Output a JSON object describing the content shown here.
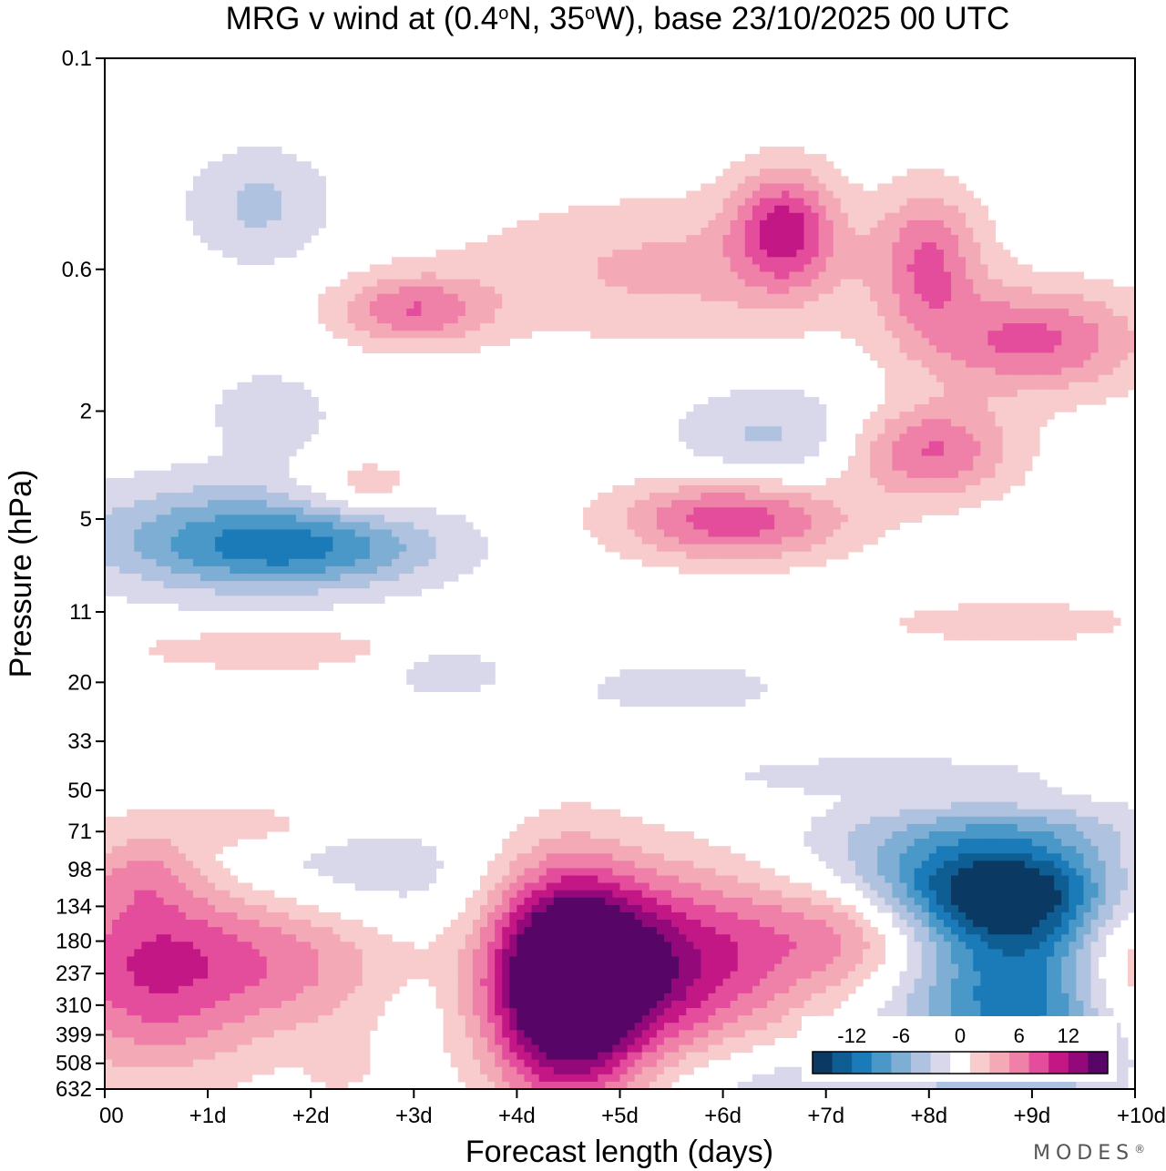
{
  "chart_data": {
    "type": "heatmap",
    "title_parts": {
      "pre": "MRG v wind at (0.4",
      "deg1": "o",
      "mid": "N, 35",
      "deg2": "o",
      "post": "W),  base 23/10/2025  00 UTC"
    },
    "xlabel": "Forecast length (days)",
    "ylabel": "Pressure (hPa)",
    "x_ticks": [
      "00",
      "+1d",
      "+2d",
      "+3d",
      "+4d",
      "+5d",
      "+6d",
      "+7d",
      "+8d",
      "+9d",
      "+10d"
    ],
    "x_range_days": [
      0,
      10
    ],
    "y_ticks": [
      "0.1",
      "0.6",
      "2",
      "5",
      "11",
      "20",
      "33",
      "50",
      "71",
      "98",
      "134",
      "180",
      "237",
      "310",
      "399",
      "508",
      "632"
    ],
    "y_range_hpa": [
      0.1,
      632
    ],
    "legend": {
      "labels": [
        "-12",
        "-6",
        "0",
        "6",
        "12"
      ],
      "colors": [
        "#0a3a63",
        "#0e5e94",
        "#1b7bb8",
        "#4a98c8",
        "#7eaed4",
        "#afc2df",
        "#d8d8ea",
        "#ffffff",
        "#f8cccc",
        "#f3aab6",
        "#ef80a8",
        "#e44d9c",
        "#c21785",
        "#93097a",
        "#570566"
      ]
    },
    "blobs": [
      {
        "x": 4.45,
        "p": 237,
        "v": 14,
        "rx": 0.75,
        "rl": 0.9
      },
      {
        "x": 5.3,
        "p": 230,
        "v": 9,
        "rx": 1.1,
        "rl": 0.75
      },
      {
        "x": 4.5,
        "p": 330,
        "v": 6,
        "rx": 0.7,
        "rl": 1.0
      },
      {
        "x": 0.4,
        "p": 220,
        "v": 9,
        "rx": 1.0,
        "rl": 0.9
      },
      {
        "x": 1.8,
        "p": 200,
        "v": 6,
        "rx": 1.1,
        "rl": 0.7
      },
      {
        "x": 7.3,
        "p": 160,
        "v": 6,
        "rx": 0.9,
        "rl": 0.5
      },
      {
        "x": 6.2,
        "p": 180,
        "v": 4,
        "rx": 1.2,
        "rl": 0.8
      },
      {
        "x": 9.9,
        "p": 220,
        "v": 7,
        "rx": 0.6,
        "rl": 0.7
      },
      {
        "x": 8.8,
        "p": 118,
        "v": -13,
        "rx": 1.1,
        "rl": 0.45
      },
      {
        "x": 7.6,
        "p": 100,
        "v": -5,
        "rx": 1.3,
        "rl": 0.5
      },
      {
        "x": 8.9,
        "p": 295,
        "v": -11,
        "rx": 1.2,
        "rl": 0.8
      },
      {
        "x": 6.5,
        "p": 600,
        "v": -3,
        "rx": 1.2,
        "rl": 0.35
      },
      {
        "x": 2.2,
        "p": 105,
        "v": -4,
        "rx": 1.5,
        "rl": 0.5
      },
      {
        "x": 8.9,
        "p": 68,
        "v": -3,
        "rx": 1.5,
        "rl": 0.25
      },
      {
        "x": 1.4,
        "p": 67,
        "v": 3,
        "rx": 0.9,
        "rl": 0.18
      },
      {
        "x": 0.4,
        "p": 100,
        "v": 3,
        "rx": 0.5,
        "rl": 0.3
      },
      {
        "x": 3.3,
        "p": 18,
        "v": -3,
        "rx": 0.6,
        "rl": 0.25
      },
      {
        "x": 5.6,
        "p": 21,
        "v": -3,
        "rx": 1.0,
        "rl": 0.22
      },
      {
        "x": 7.5,
        "p": 44,
        "v": -3,
        "rx": 1.6,
        "rl": 0.15
      },
      {
        "x": 1.6,
        "p": 15,
        "v": 3,
        "rx": 1.5,
        "rl": 0.2
      },
      {
        "x": 8.8,
        "p": 12,
        "v": 3,
        "rx": 1.3,
        "rl": 0.18
      },
      {
        "x": 1.3,
        "p": 5.8,
        "v": -7,
        "rx": 1.6,
        "rl": 0.5
      },
      {
        "x": 2.0,
        "p": 6.5,
        "v": -5,
        "rx": 1.3,
        "rl": 0.3
      },
      {
        "x": 6.1,
        "p": 5.0,
        "v": 9,
        "rx": 1.1,
        "rl": 0.35
      },
      {
        "x": 6.6,
        "p": 0.42,
        "v": 9,
        "rx": 0.5,
        "rl": 0.5
      },
      {
        "x": 3.0,
        "p": 0.85,
        "v": 7,
        "rx": 0.75,
        "rl": 0.3
      },
      {
        "x": 8.0,
        "p": 2.8,
        "v": 8,
        "rx": 0.8,
        "rl": 0.4
      },
      {
        "x": 9.0,
        "p": 1.1,
        "v": 8,
        "rx": 1.1,
        "rl": 0.45
      },
      {
        "x": 8.0,
        "p": 0.55,
        "v": 7,
        "rx": 0.5,
        "rl": 0.6
      },
      {
        "x": 5.5,
        "p": 0.6,
        "v": 4,
        "rx": 2.0,
        "rl": 0.6
      },
      {
        "x": 1.5,
        "p": 0.35,
        "v": -4,
        "rx": 0.7,
        "rl": 0.5
      },
      {
        "x": 6.5,
        "p": 2.5,
        "v": -4,
        "rx": 1.0,
        "rl": 0.45
      },
      {
        "x": 1.6,
        "p": 2.0,
        "v": -3,
        "rx": 0.6,
        "rl": 0.35
      },
      {
        "x": 2.5,
        "p": 3.8,
        "v": 4,
        "rx": 0.6,
        "rl": 0.25
      },
      {
        "x": 2.3,
        "p": 530,
        "v": 2,
        "rx": 0.3,
        "rl": 0.2
      },
      {
        "x": 3.0,
        "p": 330,
        "v": -2,
        "rx": 0.25,
        "rl": 0.25
      }
    ]
  },
  "brand": {
    "name": "MODES",
    "mark": "®"
  }
}
